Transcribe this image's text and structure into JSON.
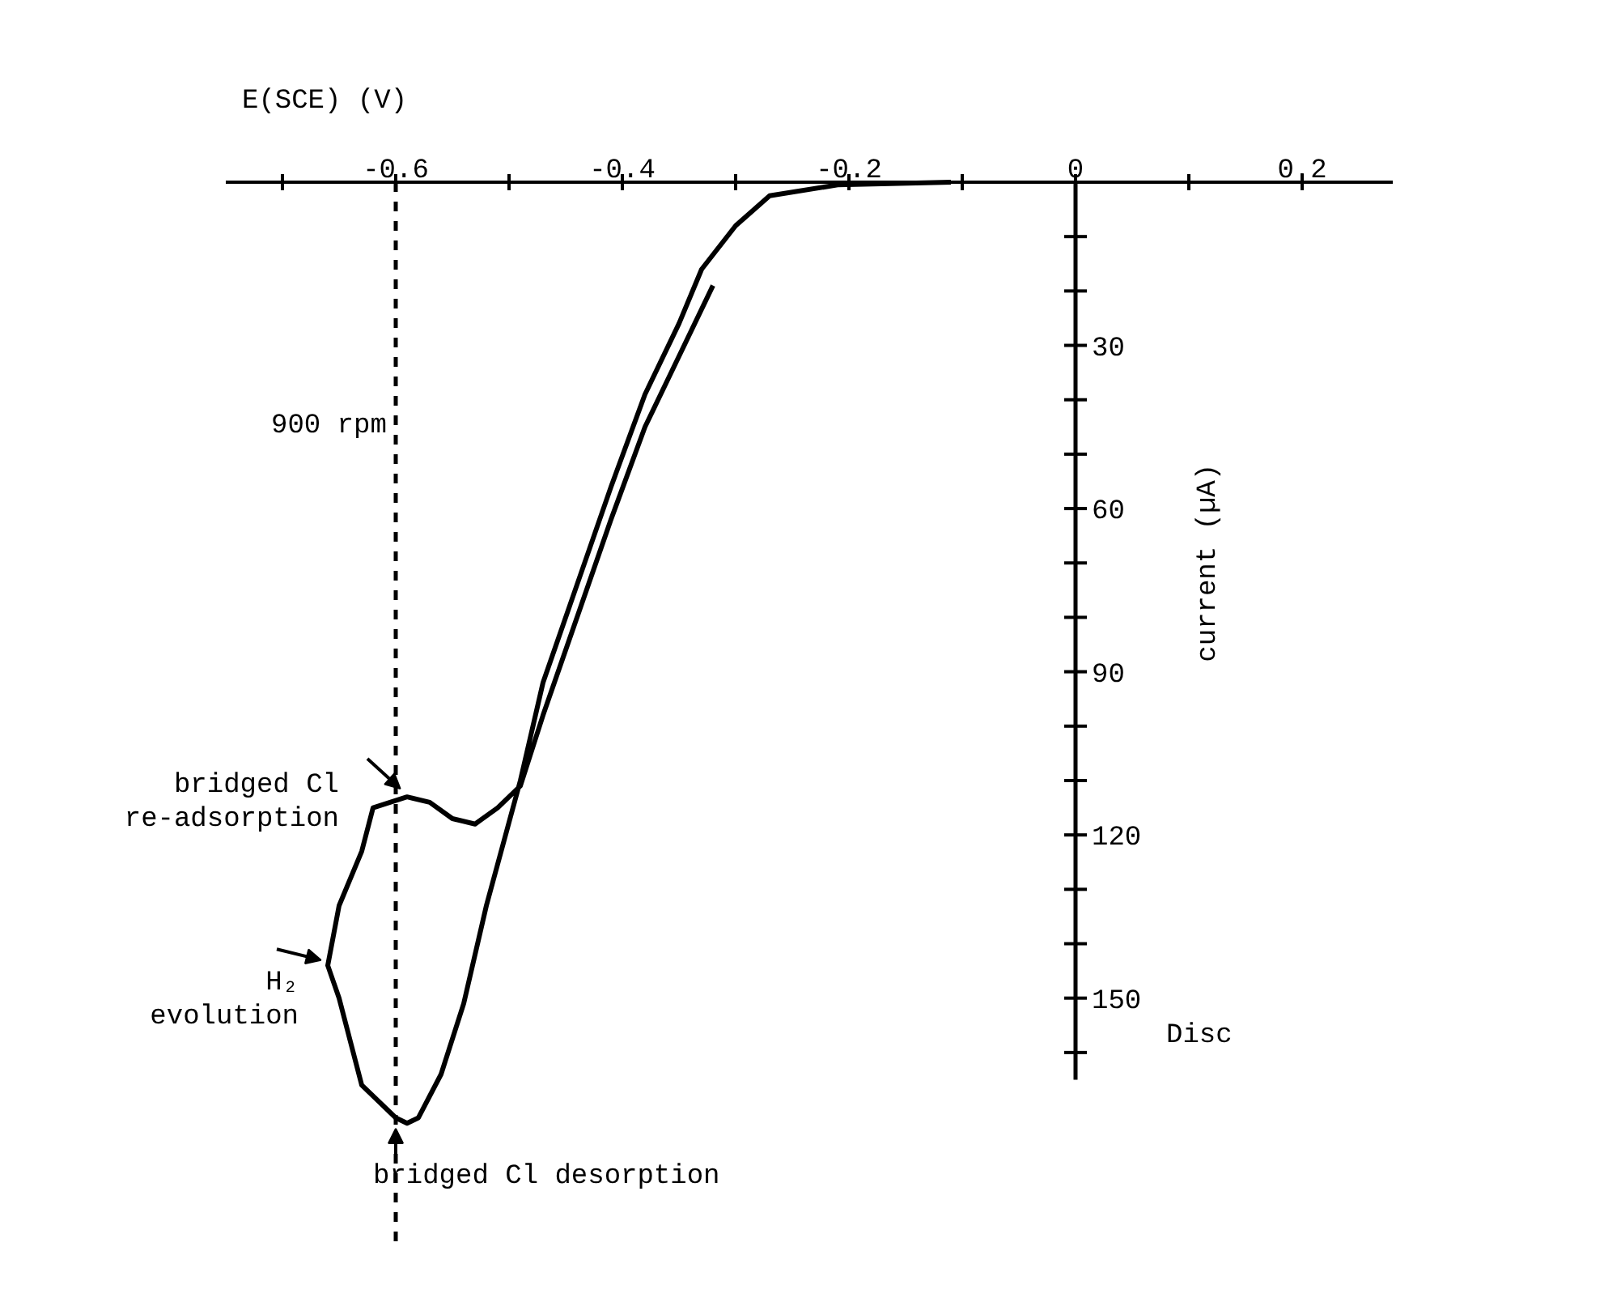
{
  "chart_data": {
    "type": "line",
    "xlabel": "E(SCE) (V)",
    "ylabel": "current (µA)",
    "xlim": [
      -0.75,
      0.28
    ],
    "ylim": [
      195,
      0
    ],
    "xticks": [
      {
        "value": -0.7,
        "label": null
      },
      -0.6,
      {
        "value": -0.5,
        "label": null
      },
      -0.4,
      {
        "value": -0.3,
        "label": null
      },
      -0.2,
      {
        "value": -0.1,
        "label": null
      },
      0,
      {
        "value": 0.1,
        "label": null
      },
      0.2
    ],
    "yticks": [
      {
        "value": 0,
        "label": null
      },
      {
        "value": 10,
        "label": null
      },
      {
        "value": 20,
        "label": null
      },
      30,
      {
        "value": 40,
        "label": null
      },
      {
        "value": 50,
        "label": null
      },
      60,
      {
        "value": 70,
        "label": null
      },
      {
        "value": 80,
        "label": null
      },
      90,
      {
        "value": 100,
        "label": null
      },
      {
        "value": 110,
        "label": null
      },
      120,
      {
        "value": 130,
        "label": null
      },
      {
        "value": 140,
        "label": null
      },
      150,
      {
        "value": 160,
        "label": null
      }
    ],
    "series": [
      {
        "color": "#000000",
        "x": [
          -0.11,
          -0.21,
          -0.27,
          -0.3,
          -0.33,
          -0.35,
          -0.38,
          -0.41,
          -0.44,
          -0.47,
          -0.49,
          -0.52,
          -0.54,
          -0.56,
          -0.58,
          -0.59,
          -0.6,
          -0.63,
          -0.64,
          -0.65,
          -0.66,
          -0.65,
          -0.63,
          -0.62,
          -0.59,
          -0.57,
          -0.55,
          -0.53,
          -0.51,
          -0.49,
          -0.47,
          -0.44,
          -0.41,
          -0.38,
          -0.35,
          -0.32
        ],
        "values": [
          0,
          0.5,
          2.5,
          8,
          16,
          26,
          39,
          56,
          74,
          92,
          110,
          133,
          151,
          164,
          172,
          173,
          172,
          166,
          158,
          150,
          144,
          133,
          123,
          115,
          113,
          114,
          117,
          118,
          115,
          111,
          98,
          80,
          62,
          45,
          32,
          19
        ]
      }
    ],
    "ref_lines": [
      {
        "axis": "x",
        "value": -0.6,
        "line_style": "dashed"
      }
    ],
    "annotations": [
      "900 rpm",
      "Disc",
      {
        "text": "bridged Cl\nre-adsorption",
        "x": -0.59,
        "y": 113
      },
      {
        "text": "H₂\nevolution",
        "x": -0.66,
        "y": 144
      },
      {
        "text": "bridged Cl desorption",
        "x": -0.6,
        "y": 173
      }
    ],
    "grid": false,
    "marker": "none",
    "line_style": "solid"
  }
}
